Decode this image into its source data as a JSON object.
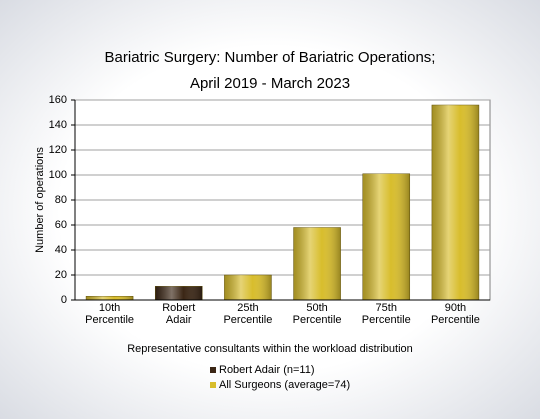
{
  "chart_data": {
    "type": "bar",
    "title": [
      "Bariatric Surgery: Number of Bariatric Operations;",
      "April 2019 - March 2023"
    ],
    "x_label": "Representative consultants within the workload distribution",
    "y_label": "Number of operations",
    "categories": [
      "10th Percentile",
      "Robert Adair",
      "25th Percentile",
      "50th Percentile",
      "75th Percentile",
      "90th Percentile"
    ],
    "series": [
      {
        "name": "Robert Adair (n=11)",
        "color": "#3b2615",
        "values": [
          null,
          11,
          null,
          null,
          null,
          null
        ]
      },
      {
        "name": "All Surgeons (average=74)",
        "color": "#d8bd2c",
        "values": [
          3,
          null,
          20,
          58,
          101,
          156
        ]
      }
    ],
    "ylim": [
      0,
      160
    ],
    "yticks": [
      0,
      20,
      40,
      60,
      80,
      100,
      120,
      140,
      160
    ],
    "grid": true
  }
}
